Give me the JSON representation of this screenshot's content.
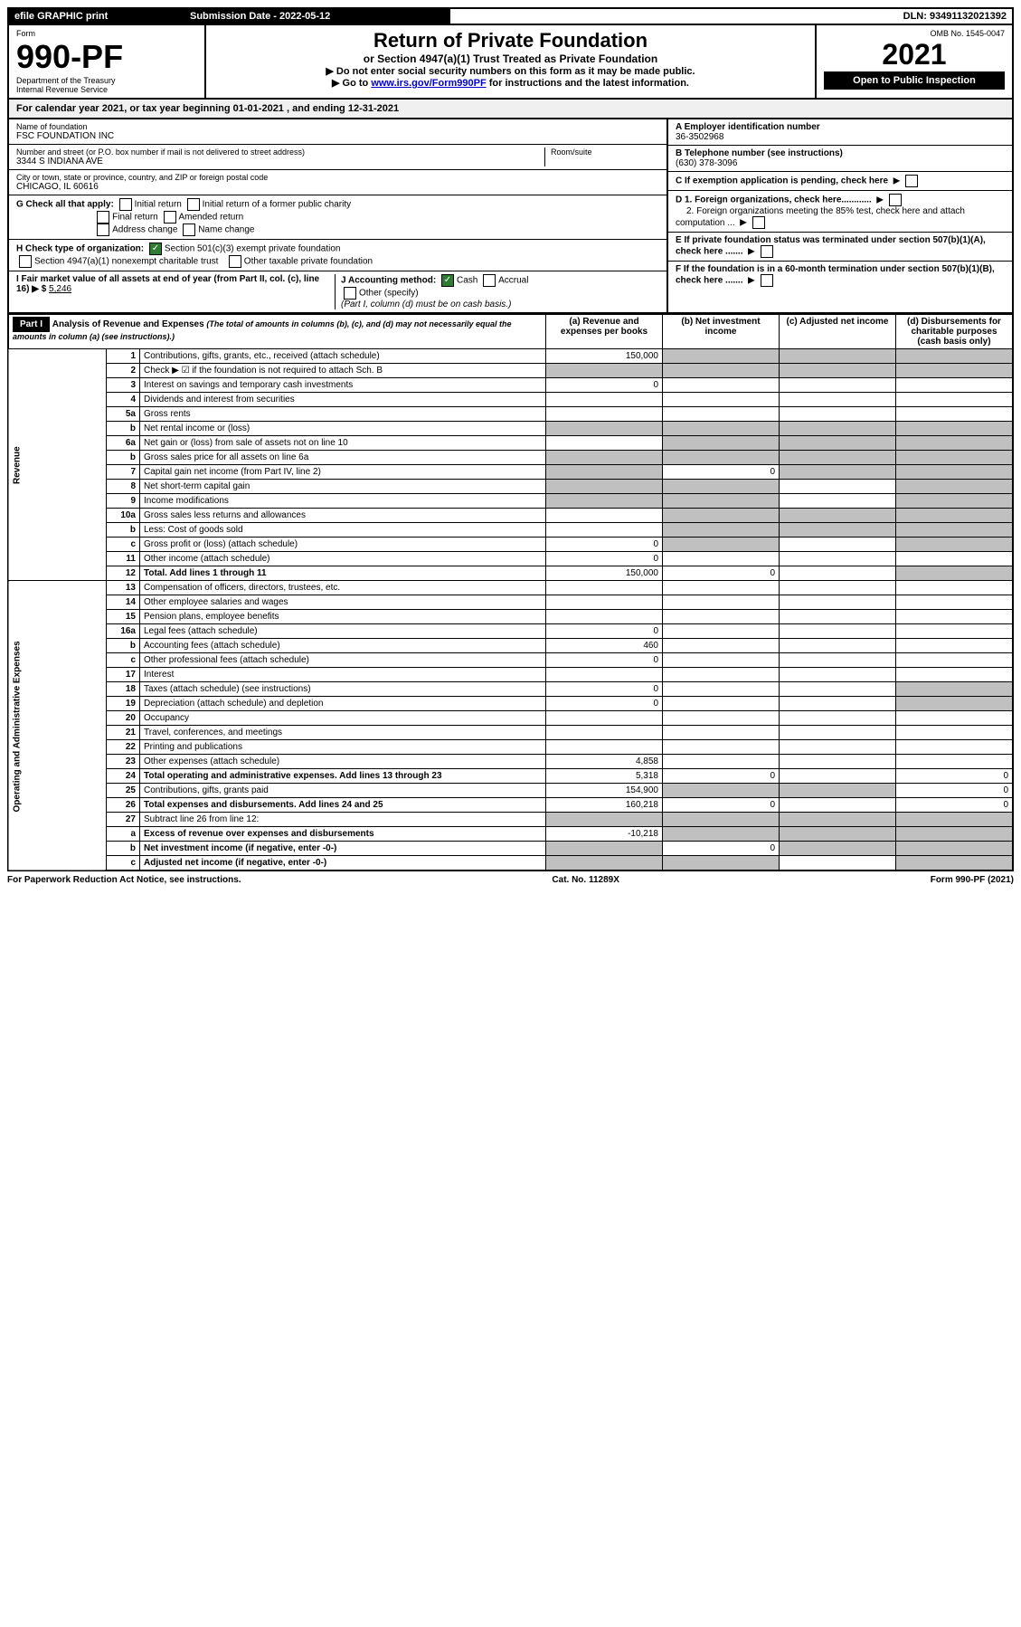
{
  "topbar": {
    "efile": "efile GRAPHIC print",
    "sub_label": "Submission Date - 2022-05-12",
    "dln": "DLN: 93491132021392"
  },
  "header": {
    "form_label": "Form",
    "form_num": "990-PF",
    "dept": "Department of the Treasury",
    "irs": "Internal Revenue Service",
    "title": "Return of Private Foundation",
    "subtitle": "or Section 4947(a)(1) Trust Treated as Private Foundation",
    "instr1": "▶ Do not enter social security numbers on this form as it may be made public.",
    "instr2_pre": "▶ Go to ",
    "instr2_link": "www.irs.gov/Form990PF",
    "instr2_post": " for instructions and the latest information.",
    "omb": "OMB No. 1545-0047",
    "year": "2021",
    "open": "Open to Public Inspection"
  },
  "cal_year": {
    "pre": "For calendar year 2021, or tax year beginning ",
    "begin": "01-01-2021",
    "mid": " , and ending ",
    "end": "12-31-2021"
  },
  "info": {
    "name_label": "Name of foundation",
    "name": "FSC FOUNDATION INC",
    "addr_label": "Number and street (or P.O. box number if mail is not delivered to street address)",
    "addr": "3344 S INDIANA AVE",
    "room_label": "Room/suite",
    "city_label": "City or town, state or province, country, and ZIP or foreign postal code",
    "city": "CHICAGO, IL  60616",
    "a_label": "A Employer identification number",
    "a_val": "36-3502968",
    "b_label": "B Telephone number (see instructions)",
    "b_val": "(630) 378-3096",
    "c_label": "C If exemption application is pending, check here",
    "d1_label": "D 1. Foreign organizations, check here............",
    "d2_label": "2. Foreign organizations meeting the 85% test, check here and attach computation ...",
    "e_label": "E  If private foundation status was terminated under section 507(b)(1)(A), check here .......",
    "f_label": "F  If the foundation is in a 60-month termination under section 507(b)(1)(B), check here .......",
    "g_label": "G Check all that apply:",
    "g_opts": [
      "Initial return",
      "Initial return of a former public charity",
      "Final return",
      "Amended return",
      "Address change",
      "Name change"
    ],
    "h_label": "H Check type of organization:",
    "h1": "Section 501(c)(3) exempt private foundation",
    "h2": "Section 4947(a)(1) nonexempt charitable trust",
    "h3": "Other taxable private foundation",
    "i_label": "I Fair market value of all assets at end of year (from Part II, col. (c), line 16) ▶ $",
    "i_val": "5,246",
    "j_label": "J Accounting method:",
    "j_cash": "Cash",
    "j_accrual": "Accrual",
    "j_other": "Other (specify)",
    "j_note": "(Part I, column (d) must be on cash basis.)"
  },
  "part1": {
    "label": "Part I",
    "title": "Analysis of Revenue and Expenses",
    "title_note": " (The total of amounts in columns (b), (c), and (d) may not necessarily equal the amounts in column (a) (see instructions).)",
    "col_a": "(a) Revenue and expenses per books",
    "col_b": "(b) Net investment income",
    "col_c": "(c) Adjusted net income",
    "col_d": "(d) Disbursements for charitable purposes (cash basis only)"
  },
  "side_labels": {
    "revenue": "Revenue",
    "expenses": "Operating and Administrative Expenses"
  },
  "rows": [
    {
      "n": "1",
      "d": "Contributions, gifts, grants, etc., received (attach schedule)",
      "a": "150,000",
      "gray_b": true,
      "gray_c": true,
      "gray_d": true
    },
    {
      "n": "2",
      "d": "Check ▶ ☑ if the foundation is not required to attach Sch. B",
      "gray_a": true,
      "gray_b": true,
      "gray_c": true,
      "gray_d": true,
      "bold": false
    },
    {
      "n": "3",
      "d": "Interest on savings and temporary cash investments",
      "a": "0"
    },
    {
      "n": "4",
      "d": "Dividends and interest from securities"
    },
    {
      "n": "5a",
      "d": "Gross rents"
    },
    {
      "n": "b",
      "d": "Net rental income or (loss)",
      "gray_a": true,
      "gray_b": true,
      "gray_c": true,
      "gray_d": true
    },
    {
      "n": "6a",
      "d": "Net gain or (loss) from sale of assets not on line 10",
      "gray_b": true,
      "gray_c": true,
      "gray_d": true
    },
    {
      "n": "b",
      "d": "Gross sales price for all assets on line 6a",
      "gray_a": true,
      "gray_b": true,
      "gray_c": true,
      "gray_d": true
    },
    {
      "n": "7",
      "d": "Capital gain net income (from Part IV, line 2)",
      "gray_a": true,
      "b": "0",
      "gray_c": true,
      "gray_d": true
    },
    {
      "n": "8",
      "d": "Net short-term capital gain",
      "gray_a": true,
      "gray_b": true,
      "gray_d": true
    },
    {
      "n": "9",
      "d": "Income modifications",
      "gray_a": true,
      "gray_b": true,
      "gray_d": true
    },
    {
      "n": "10a",
      "d": "Gross sales less returns and allowances",
      "gray_b": true,
      "gray_c": true,
      "gray_d": true
    },
    {
      "n": "b",
      "d": "Less: Cost of goods sold",
      "gray_b": true,
      "gray_c": true,
      "gray_d": true
    },
    {
      "n": "c",
      "d": "Gross profit or (loss) (attach schedule)",
      "a": "0",
      "gray_b": true,
      "gray_d": true
    },
    {
      "n": "11",
      "d": "Other income (attach schedule)",
      "a": "0"
    },
    {
      "n": "12",
      "d": "Total. Add lines 1 through 11",
      "a": "150,000",
      "b": "0",
      "gray_d": true,
      "bold": true
    },
    {
      "n": "13",
      "d": "Compensation of officers, directors, trustees, etc."
    },
    {
      "n": "14",
      "d": "Other employee salaries and wages"
    },
    {
      "n": "15",
      "d": "Pension plans, employee benefits"
    },
    {
      "n": "16a",
      "d": "Legal fees (attach schedule)",
      "a": "0"
    },
    {
      "n": "b",
      "d": "Accounting fees (attach schedule)",
      "a": "460"
    },
    {
      "n": "c",
      "d": "Other professional fees (attach schedule)",
      "a": "0"
    },
    {
      "n": "17",
      "d": "Interest"
    },
    {
      "n": "18",
      "d": "Taxes (attach schedule) (see instructions)",
      "a": "0",
      "gray_d": true
    },
    {
      "n": "19",
      "d": "Depreciation (attach schedule) and depletion",
      "a": "0",
      "gray_d": true
    },
    {
      "n": "20",
      "d": "Occupancy"
    },
    {
      "n": "21",
      "d": "Travel, conferences, and meetings"
    },
    {
      "n": "22",
      "d": "Printing and publications"
    },
    {
      "n": "23",
      "d": "Other expenses (attach schedule)",
      "a": "4,858"
    },
    {
      "n": "24",
      "d": "Total operating and administrative expenses. Add lines 13 through 23",
      "a": "5,318",
      "b": "0",
      "dv": "0",
      "bold": true
    },
    {
      "n": "25",
      "d": "Contributions, gifts, grants paid",
      "a": "154,900",
      "gray_b": true,
      "gray_c": true,
      "dv": "0"
    },
    {
      "n": "26",
      "d": "Total expenses and disbursements. Add lines 24 and 25",
      "a": "160,218",
      "b": "0",
      "dv": "0",
      "bold": true
    },
    {
      "n": "27",
      "d": "Subtract line 26 from line 12:",
      "gray_a": true,
      "gray_b": true,
      "gray_c": true,
      "gray_d": true
    },
    {
      "n": "a",
      "d": "Excess of revenue over expenses and disbursements",
      "a": "-10,218",
      "gray_b": true,
      "gray_c": true,
      "gray_d": true,
      "bold": true
    },
    {
      "n": "b",
      "d": "Net investment income (if negative, enter -0-)",
      "gray_a": true,
      "b": "0",
      "gray_c": true,
      "gray_d": true,
      "bold": true
    },
    {
      "n": "c",
      "d": "Adjusted net income (if negative, enter -0-)",
      "gray_a": true,
      "gray_b": true,
      "gray_d": true,
      "bold": true
    }
  ],
  "footer": {
    "left": "For Paperwork Reduction Act Notice, see instructions.",
    "mid": "Cat. No. 11289X",
    "right": "Form 990-PF (2021)"
  }
}
